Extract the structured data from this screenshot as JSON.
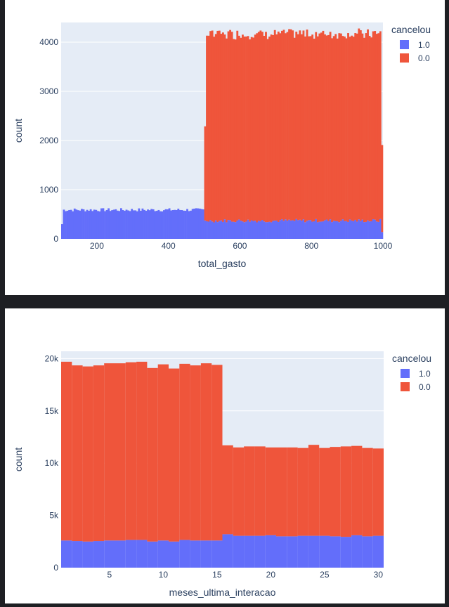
{
  "chart_data": [
    {
      "type": "bar",
      "stacked": true,
      "xlabel": "total_gasto",
      "ylabel": "count",
      "xlim": [
        100,
        1000
      ],
      "ylim": [
        0,
        4400
      ],
      "x_ticks": [
        200,
        400,
        600,
        800,
        1000
      ],
      "y_ticks": [
        0,
        1000,
        2000,
        3000,
        4000
      ],
      "y_tick_labels": [
        "0",
        "1000",
        "2000",
        "3000",
        "4000"
      ],
      "bin_width": 5,
      "legend": {
        "title": "cancelou",
        "placement": "right"
      },
      "grid": true,
      "series": [
        {
          "name": "1.0",
          "color": "#636efa",
          "segments": [
            {
              "x_start": 100,
              "x_end": 105,
              "value": 300
            },
            {
              "x_start": 105,
              "x_end": 500,
              "value": 590
            },
            {
              "x_start": 500,
              "x_end": 995,
              "value": 370
            },
            {
              "x_start": 995,
              "x_end": 1000,
              "value": 150
            }
          ]
        },
        {
          "name": "0.0",
          "color": "#ef553b",
          "segments": [
            {
              "x_start": 100,
              "x_end": 500,
              "value": 0
            },
            {
              "x_start": 500,
              "x_end": 505,
              "value": 2000
            },
            {
              "x_start": 505,
              "x_end": 995,
              "value": 3800
            },
            {
              "x_start": 995,
              "x_end": 1000,
              "value": 1800
            }
          ]
        }
      ]
    },
    {
      "type": "bar",
      "stacked": true,
      "xlabel": "meses_ultima_interacao",
      "ylabel": "count",
      "xlim": [
        0.5,
        30.5
      ],
      "ylim": [
        0,
        20700
      ],
      "x_ticks": [
        5,
        10,
        15,
        20,
        25,
        30
      ],
      "y_ticks": [
        0,
        5000,
        10000,
        15000,
        20000
      ],
      "y_tick_labels": [
        "0",
        "5k",
        "10k",
        "15k",
        "20k"
      ],
      "legend": {
        "title": "cancelou",
        "placement": "right"
      },
      "grid": true,
      "x": [
        1,
        2,
        3,
        4,
        5,
        6,
        7,
        8,
        9,
        10,
        11,
        12,
        13,
        14,
        15,
        16,
        17,
        18,
        19,
        20,
        21,
        22,
        23,
        24,
        25,
        26,
        27,
        28,
        29,
        30
      ],
      "series": [
        {
          "name": "1.0",
          "color": "#636efa",
          "values": [
            2600,
            2550,
            2500,
            2550,
            2600,
            2600,
            2650,
            2650,
            2500,
            2600,
            2500,
            2650,
            2600,
            2600,
            2600,
            3200,
            3050,
            3050,
            3050,
            3100,
            3000,
            3000,
            3050,
            3050,
            3050,
            3000,
            2950,
            3100,
            3000,
            3050
          ]
        },
        {
          "name": "0.0",
          "color": "#ef553b",
          "values": [
            17100,
            16800,
            16750,
            16800,
            16950,
            16950,
            17000,
            17050,
            16600,
            16850,
            16550,
            16850,
            16750,
            16950,
            16800,
            8500,
            8450,
            8550,
            8550,
            8400,
            8500,
            8500,
            8400,
            8700,
            8400,
            8550,
            8650,
            8550,
            8450,
            8350
          ]
        }
      ]
    }
  ]
}
